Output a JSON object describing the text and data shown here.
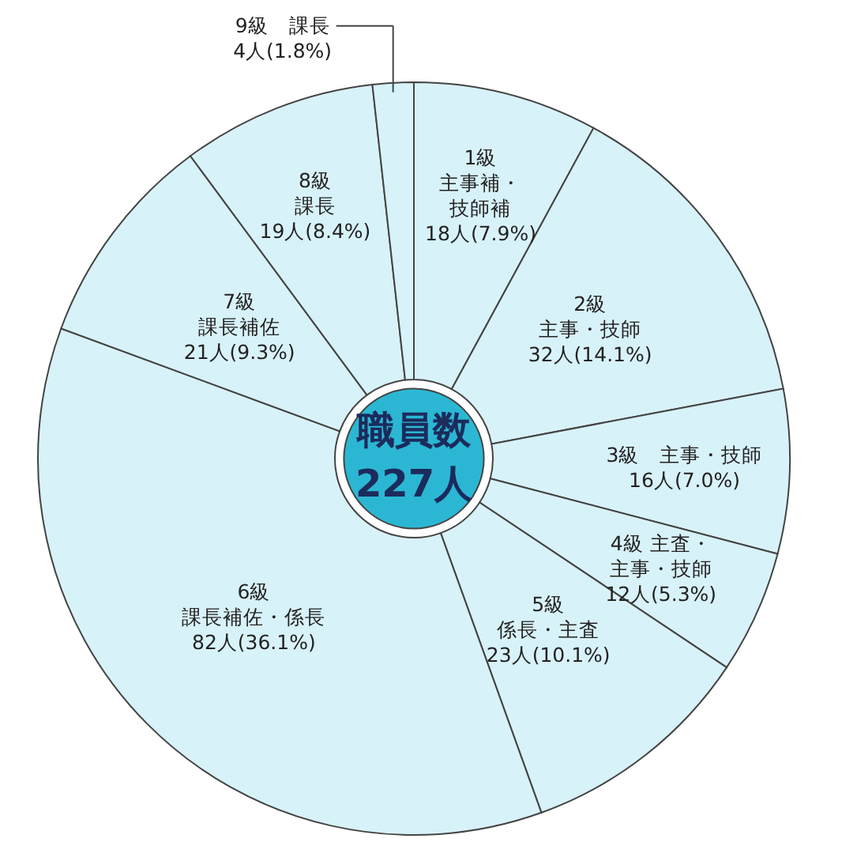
{
  "chart_data": {
    "type": "donut",
    "categories": [
      "1級主事補・技師補",
      "2級主事・技師",
      "3級　主事・技師",
      "4級 主査・主事・技師",
      "5級係長・主査",
      "6級課長補佐・係長",
      "7級課長補佐",
      "8級課長",
      "9級　課長"
    ],
    "values": [
      18,
      32,
      16,
      12,
      23,
      82,
      21,
      19,
      4
    ],
    "value_labels": [
      "18人(7.9%)",
      "32人(14.1%)",
      "16人(7.0%)",
      "12人(5.3%)",
      "23人(10.1%)",
      "82人(36.1%)",
      "21人(9.3%)",
      "19人(8.4%)",
      "4人(1.8%)"
    ],
    "colors": [
      "#d8f2f9",
      "#d8f2f9",
      "#d8f2f9",
      "#d8f2f9",
      "#d8f2f9",
      "#d8f2f9",
      "#d8f2f9",
      "#d8f2f9",
      "#d8f2f9"
    ],
    "annotations": [
      "職員数",
      "227人"
    ]
  }
}
